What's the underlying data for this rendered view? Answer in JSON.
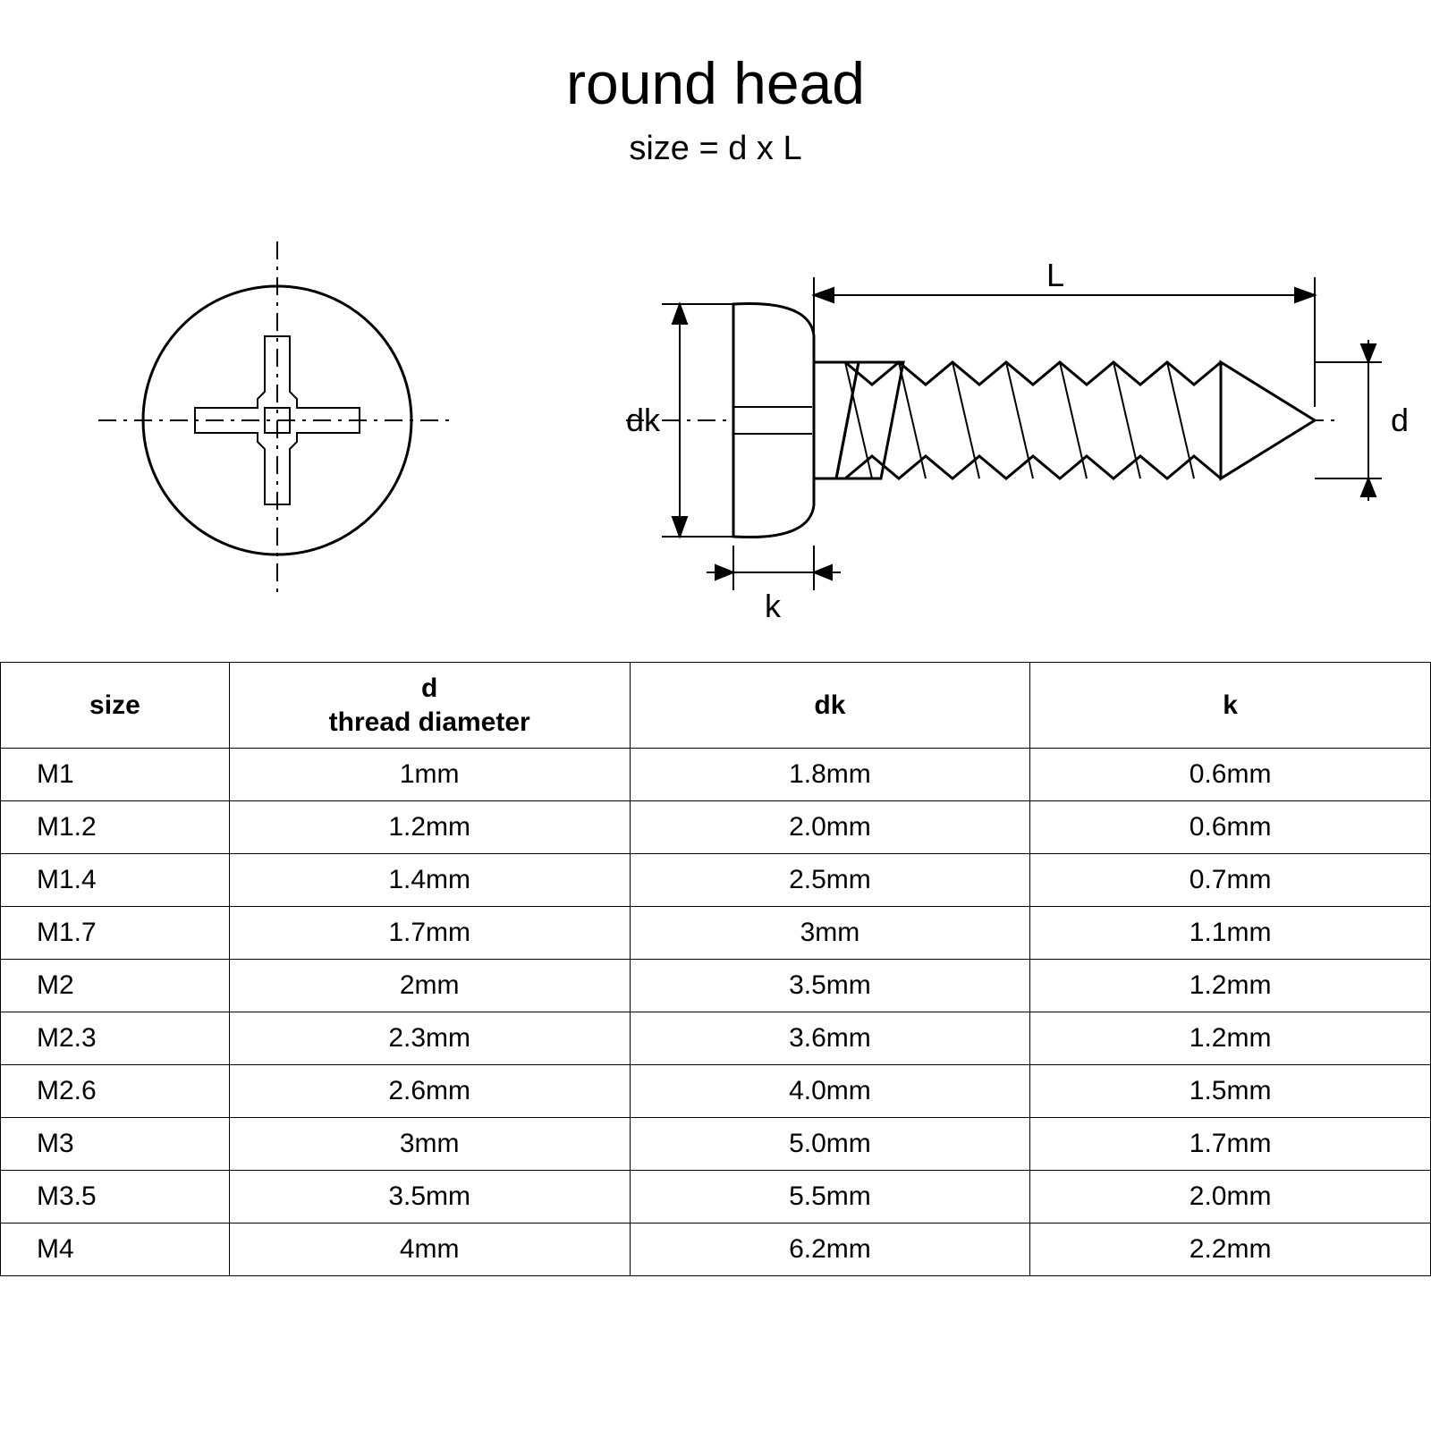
{
  "title": "round head",
  "subtitle": "size = d x L",
  "diagram": {
    "stroke": "#000000",
    "stroke_width": 2,
    "dash": "16 8",
    "labels": {
      "dk": "dk",
      "k": "k",
      "L": "L",
      "d": "d"
    }
  },
  "table": {
    "headers": {
      "size": "size",
      "d_top": "d",
      "d_bottom": "thread diameter",
      "dk": "dk",
      "k": "k"
    },
    "rows": [
      {
        "size": "M1",
        "d": "1mm",
        "dk": "1.8mm",
        "k": "0.6mm"
      },
      {
        "size": "M1.2",
        "d": "1.2mm",
        "dk": "2.0mm",
        "k": "0.6mm"
      },
      {
        "size": "M1.4",
        "d": "1.4mm",
        "dk": "2.5mm",
        "k": "0.7mm"
      },
      {
        "size": "M1.7",
        "d": "1.7mm",
        "dk": "3mm",
        "k": "1.1mm"
      },
      {
        "size": "M2",
        "d": "2mm",
        "dk": "3.5mm",
        "k": "1.2mm"
      },
      {
        "size": "M2.3",
        "d": "2.3mm",
        "dk": "3.6mm",
        "k": "1.2mm"
      },
      {
        "size": "M2.6",
        "d": "2.6mm",
        "dk": "4.0mm",
        "k": "1.5mm"
      },
      {
        "size": "M3",
        "d": "3mm",
        "dk": "5.0mm",
        "k": "1.7mm"
      },
      {
        "size": "M3.5",
        "d": "3.5mm",
        "dk": "5.5mm",
        "k": "2.0mm"
      },
      {
        "size": "M4",
        "d": "4mm",
        "dk": "6.2mm",
        "k": "2.2mm"
      }
    ]
  }
}
